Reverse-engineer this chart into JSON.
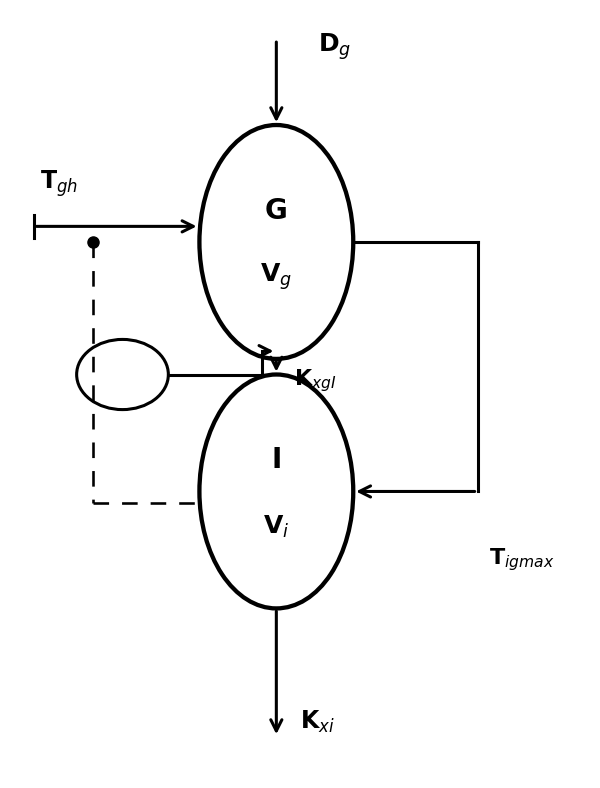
{
  "fig_width": 6.0,
  "fig_height": 7.88,
  "bg_color": "#ffffff",
  "G_label": "G",
  "Vg_label": "V$_g$",
  "I_label": "I",
  "Vi_label": "V$_i$",
  "Dg_label": "D$_g$",
  "Tgh_label": "T$_{gh}$",
  "KxgI_label": "K$_{xgI}$",
  "Tigmax_label": "T$_{igmax}$",
  "Kxi_label": "K$_{xi}$",
  "font_size": 15,
  "lw": 2.2
}
